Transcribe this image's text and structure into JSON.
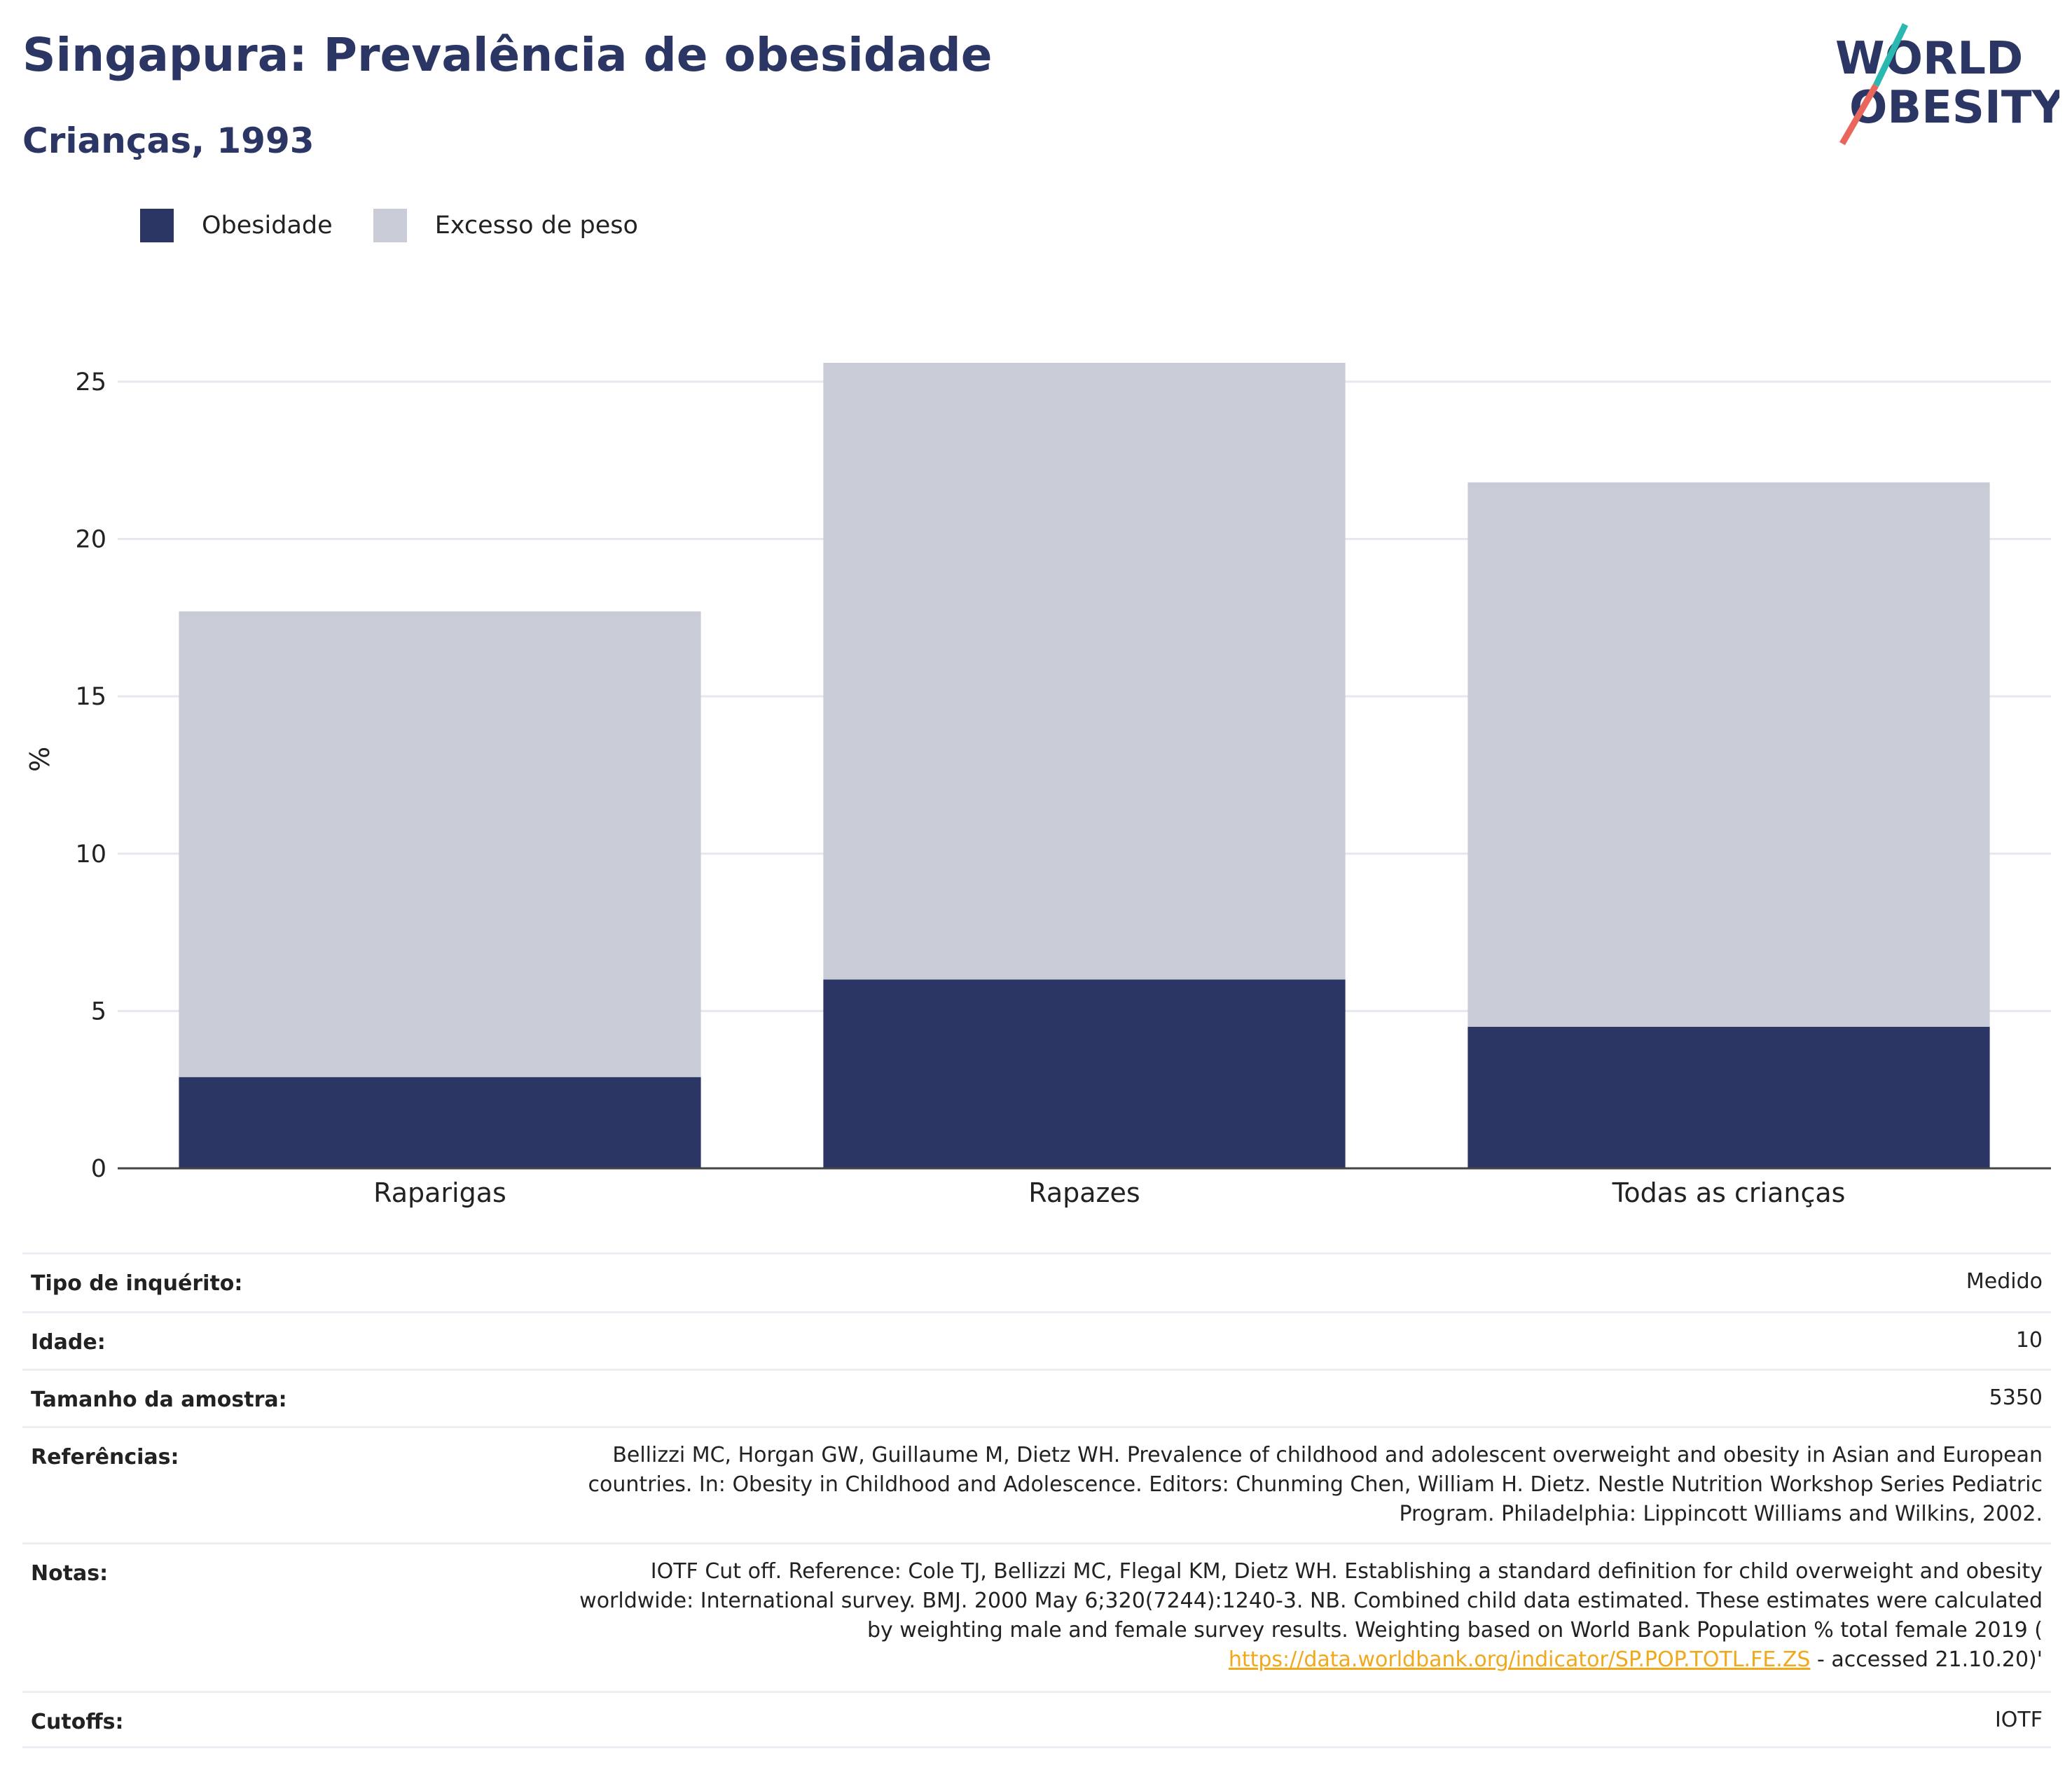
{
  "header": {
    "title": "Singapura: Prevalência de obesidade",
    "subtitle": "Crianças, 1993"
  },
  "logo": {
    "line1": "WORLD",
    "line2": "OBESITY",
    "colors": {
      "text": "#2b3664",
      "slash_top": "#2bb8b0",
      "slash_bottom": "#e8675a"
    }
  },
  "legend": {
    "items": [
      {
        "label": "Obesidade",
        "color": "#2b3664"
      },
      {
        "label": "Excesso de peso",
        "color": "#c9cbd7"
      }
    ]
  },
  "chart_data": {
    "type": "bar",
    "stacked": true,
    "categories": [
      "Raparigas",
      "Rapazes",
      "Todas as crianças"
    ],
    "series": [
      {
        "name": "Obesidade",
        "values": [
          2.9,
          6.0,
          4.5
        ],
        "color": "#2b3664"
      },
      {
        "name": "Excesso de peso",
        "values": [
          14.8,
          19.6,
          17.3
        ],
        "color": "#c9cbd7"
      }
    ],
    "ylabel": "%",
    "ylim": [
      0,
      26
    ],
    "yticks": [
      0,
      5,
      10,
      15,
      20,
      25
    ],
    "grid": true,
    "legend_position": "top-left"
  },
  "info": {
    "rows": [
      {
        "key": "Tipo de inquérito:",
        "value": "Medido"
      },
      {
        "key": "Idade:",
        "value": "10"
      },
      {
        "key": "Tamanho da amostra:",
        "value": "5350"
      },
      {
        "key": "Referências:",
        "value": "Bellizzi MC, Horgan GW, Guillaume M, Dietz WH. Prevalence of childhood and adolescent overweight and obesity in Asian and European countries. In: Obesity in Childhood and Adolescence. Editors: Chunming Chen, William H. Dietz. Nestle Nutrition Workshop Series Pediatric Program. Philadelphia: Lippincott Williams and Wilkins, 2002."
      },
      {
        "key": "Notas:",
        "value": "IOTF Cut off. Reference: Cole TJ, Bellizzi MC, Flegal KM, Dietz WH. Establishing a standard definition for child overweight and obesity worldwide: International survey. BMJ. 2000 May 6;320(7244):1240-3. NB. Combined child data estimated. These estimates were calculated by weighting male and female survey results. Weighting based on World Bank Population % total female 2019 (",
        "link": "https://data.worldbank.org/indicator/SP.POP.TOTL.FE.ZS",
        "suffix": " - accessed 21.10.20)'"
      },
      {
        "key": "Cutoffs:",
        "value": "IOTF"
      }
    ]
  }
}
